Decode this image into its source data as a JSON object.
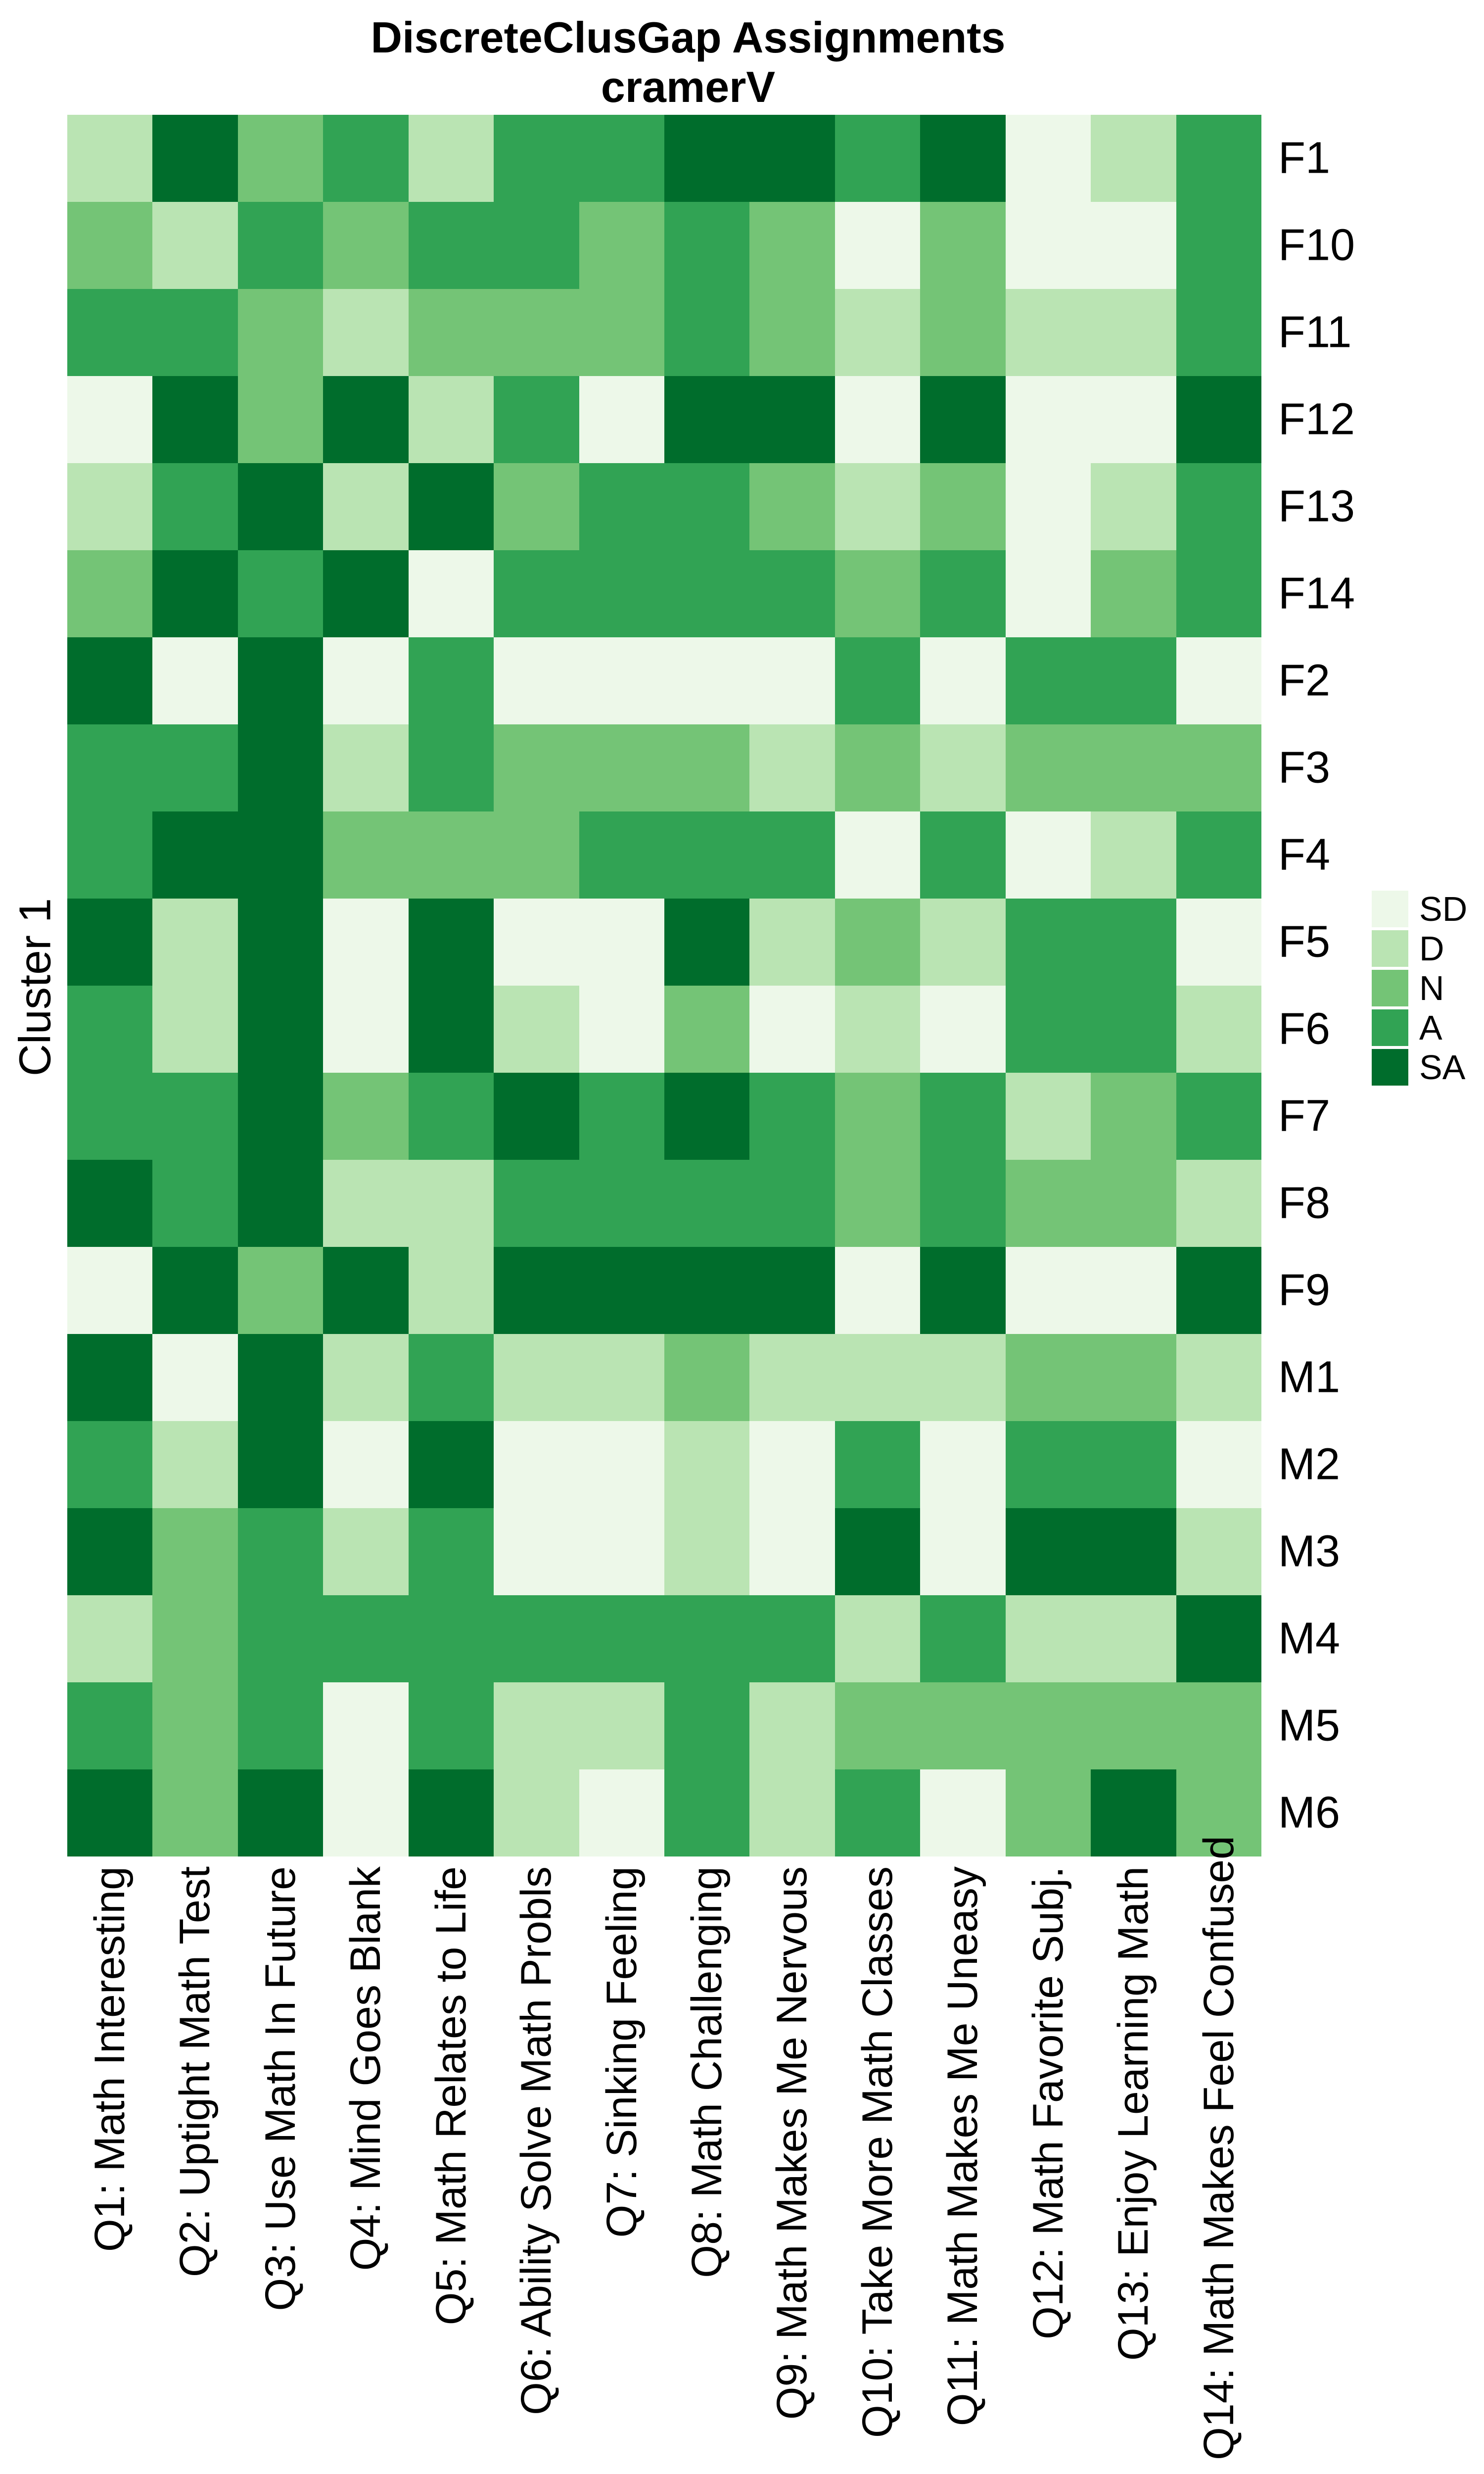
{
  "chart_data": {
    "type": "heatmap",
    "title": "DiscreteClusGap Assignments",
    "subtitle": "cramerV",
    "ylabel": "Cluster 1",
    "legend_position": "right",
    "grid": false,
    "levels": [
      "SD",
      "D",
      "N",
      "A",
      "SA"
    ],
    "palette": {
      "SD": "#edf8e9",
      "D": "#bae4b3",
      "N": "#74c476",
      "A": "#31a354",
      "SA": "#006d2c"
    },
    "rows": [
      "F1",
      "F10",
      "F11",
      "F12",
      "F13",
      "F14",
      "F2",
      "F3",
      "F4",
      "F5",
      "F6",
      "F7",
      "F8",
      "F9",
      "M1",
      "M2",
      "M3",
      "M4",
      "M5",
      "M6"
    ],
    "columns": [
      "Q1: Math Interesting",
      "Q2: Uptight Math Test",
      "Q3: Use Math In Future",
      "Q4: Mind Goes Blank",
      "Q5: Math Relates to Life",
      "Q6: Ability Solve Math Probls",
      "Q7: Sinking Feeling",
      "Q8: Math Challenging",
      "Q9: Math Makes Me Nervous",
      "Q10: Take More Math Classes",
      "Q11: Math Makes Me Uneasy",
      "Q12: Math Favorite Subj.",
      "Q13: Enjoy Learning Math",
      "Q14: Math Makes Feel Confused"
    ],
    "values": [
      [
        "D",
        "SA",
        "N",
        "A",
        "D",
        "A",
        "A",
        "SA",
        "SA",
        "A",
        "SA",
        "SD",
        "D",
        "A"
      ],
      [
        "N",
        "D",
        "A",
        "N",
        "A",
        "A",
        "N",
        "A",
        "N",
        "SD",
        "N",
        "SD",
        "SD",
        "A"
      ],
      [
        "A",
        "A",
        "N",
        "D",
        "N",
        "N",
        "N",
        "A",
        "N",
        "D",
        "N",
        "D",
        "D",
        "A"
      ],
      [
        "SD",
        "SA",
        "N",
        "SA",
        "D",
        "A",
        "SD",
        "SA",
        "SA",
        "SD",
        "SA",
        "SD",
        "SD",
        "SA"
      ],
      [
        "D",
        "A",
        "SA",
        "D",
        "SA",
        "N",
        "A",
        "A",
        "N",
        "D",
        "N",
        "SD",
        "D",
        "A"
      ],
      [
        "N",
        "SA",
        "A",
        "SA",
        "SD",
        "A",
        "A",
        "A",
        "A",
        "N",
        "A",
        "SD",
        "N",
        "A"
      ],
      [
        "SA",
        "SD",
        "SA",
        "SD",
        "A",
        "SD",
        "SD",
        "SD",
        "SD",
        "A",
        "SD",
        "A",
        "A",
        "SD"
      ],
      [
        "A",
        "A",
        "SA",
        "D",
        "A",
        "N",
        "N",
        "N",
        "D",
        "N",
        "D",
        "N",
        "N",
        "N"
      ],
      [
        "A",
        "SA",
        "SA",
        "N",
        "N",
        "N",
        "A",
        "A",
        "A",
        "SD",
        "A",
        "SD",
        "D",
        "A"
      ],
      [
        "SA",
        "D",
        "SA",
        "SD",
        "SA",
        "SD",
        "SD",
        "SA",
        "D",
        "N",
        "D",
        "A",
        "A",
        "SD"
      ],
      [
        "A",
        "D",
        "SA",
        "SD",
        "SA",
        "D",
        "SD",
        "N",
        "SD",
        "D",
        "SD",
        "A",
        "A",
        "D"
      ],
      [
        "A",
        "A",
        "SA",
        "N",
        "A",
        "SA",
        "A",
        "SA",
        "A",
        "N",
        "A",
        "D",
        "N",
        "A"
      ],
      [
        "SA",
        "A",
        "SA",
        "D",
        "D",
        "A",
        "A",
        "A",
        "A",
        "N",
        "A",
        "N",
        "N",
        "D"
      ],
      [
        "SD",
        "SA",
        "N",
        "SA",
        "D",
        "SA",
        "SA",
        "SA",
        "SA",
        "SD",
        "SA",
        "SD",
        "SD",
        "SA"
      ],
      [
        "SA",
        "SD",
        "SA",
        "D",
        "A",
        "D",
        "D",
        "N",
        "D",
        "D",
        "D",
        "N",
        "N",
        "D"
      ],
      [
        "A",
        "D",
        "SA",
        "SD",
        "SA",
        "SD",
        "SD",
        "D",
        "SD",
        "A",
        "SD",
        "A",
        "A",
        "SD"
      ],
      [
        "SA",
        "N",
        "A",
        "D",
        "A",
        "SD",
        "SD",
        "D",
        "SD",
        "SA",
        "SD",
        "SA",
        "SA",
        "D"
      ],
      [
        "D",
        "N",
        "A",
        "A",
        "A",
        "A",
        "A",
        "A",
        "A",
        "D",
        "A",
        "D",
        "D",
        "SA"
      ],
      [
        "A",
        "N",
        "A",
        "SD",
        "A",
        "D",
        "D",
        "A",
        "D",
        "N",
        "N",
        "N",
        "N",
        "N"
      ],
      [
        "SA",
        "N",
        "SA",
        "SD",
        "SA",
        "D",
        "SD",
        "A",
        "D",
        "A",
        "SD",
        "N",
        "SA",
        "N"
      ]
    ],
    "legend_entries": [
      {
        "label": "SD"
      },
      {
        "label": "D"
      },
      {
        "label": "N"
      },
      {
        "label": "A"
      },
      {
        "label": "SA"
      }
    ]
  }
}
